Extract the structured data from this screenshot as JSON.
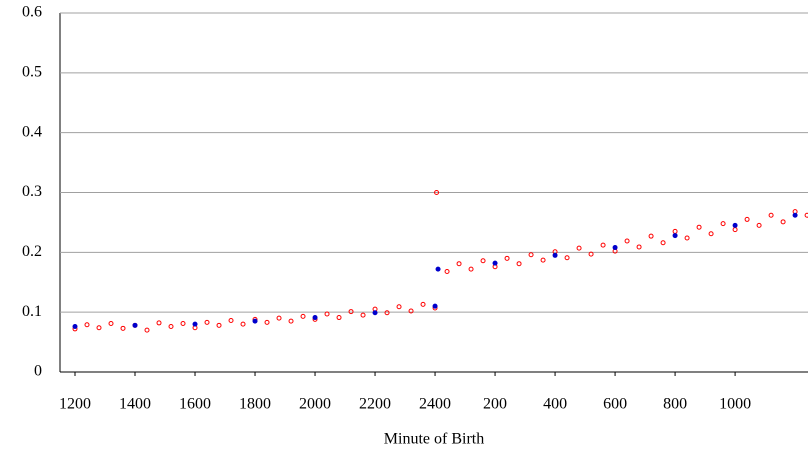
{
  "chart_data": {
    "type": "scatter",
    "x_label": "Minute of Birth",
    "xlim": [
      1150,
      3643
    ],
    "ylim": [
      0,
      0.6
    ],
    "xticks": [
      1200,
      1400,
      1600,
      1800,
      2000,
      2200,
      2400,
      {
        "value": 2600,
        "label": "200"
      },
      {
        "value": 2800,
        "label": "400"
      },
      {
        "value": 3000,
        "label": "600"
      },
      {
        "value": 3200,
        "label": "800"
      },
      {
        "value": 3400,
        "label": "1000"
      }
    ],
    "yticks": [
      0,
      0.1,
      0.2,
      0.3,
      0.4,
      0.5,
      0.6
    ],
    "grid": true,
    "series": [
      {
        "color": "#ff0000",
        "x": [
          1200,
          1240,
          1280,
          1320,
          1360,
          1400,
          1440,
          1480,
          1520,
          1560,
          1600,
          1640,
          1680,
          1720,
          1760,
          1800,
          1840,
          1880,
          1920,
          1960,
          2000,
          2040,
          2080,
          2120,
          2160,
          2200,
          2240,
          2280,
          2320,
          2360,
          2400,
          2405,
          2440,
          2480,
          2520,
          2560,
          2600,
          2640,
          2680,
          2720,
          2760,
          2800,
          2840,
          2880,
          2920,
          2960,
          3000,
          3040,
          3080,
          3120,
          3160,
          3200,
          3240,
          3280,
          3320,
          3360,
          3400,
          3440,
          3480,
          3520,
          3560,
          3600,
          3640
        ],
        "values": [
          0.072,
          0.079,
          0.074,
          0.081,
          0.073,
          0.078,
          0.07,
          0.082,
          0.076,
          0.081,
          0.074,
          0.083,
          0.078,
          0.086,
          0.08,
          0.088,
          0.083,
          0.09,
          0.085,
          0.093,
          0.088,
          0.097,
          0.091,
          0.101,
          0.095,
          0.105,
          0.099,
          0.109,
          0.102,
          0.113,
          0.107,
          0.3,
          0.168,
          0.181,
          0.172,
          0.186,
          0.176,
          0.19,
          0.181,
          0.196,
          0.187,
          0.201,
          0.191,
          0.207,
          0.197,
          0.212,
          0.202,
          0.219,
          0.209,
          0.227,
          0.216,
          0.235,
          0.224,
          0.242,
          0.231,
          0.248,
          0.238,
          0.255,
          0.245,
          0.262,
          0.251,
          0.268,
          0.262
        ]
      },
      {
        "color": "#0000cc",
        "x": [
          1200,
          1400,
          1600,
          1800,
          2000,
          2200,
          2400,
          2410,
          2600,
          2800,
          3000,
          3200,
          3400,
          3600
        ],
        "values": [
          0.076,
          0.078,
          0.08,
          0.085,
          0.091,
          0.099,
          0.11,
          0.172,
          0.182,
          0.195,
          0.208,
          0.228,
          0.245,
          0.262
        ]
      }
    ]
  }
}
